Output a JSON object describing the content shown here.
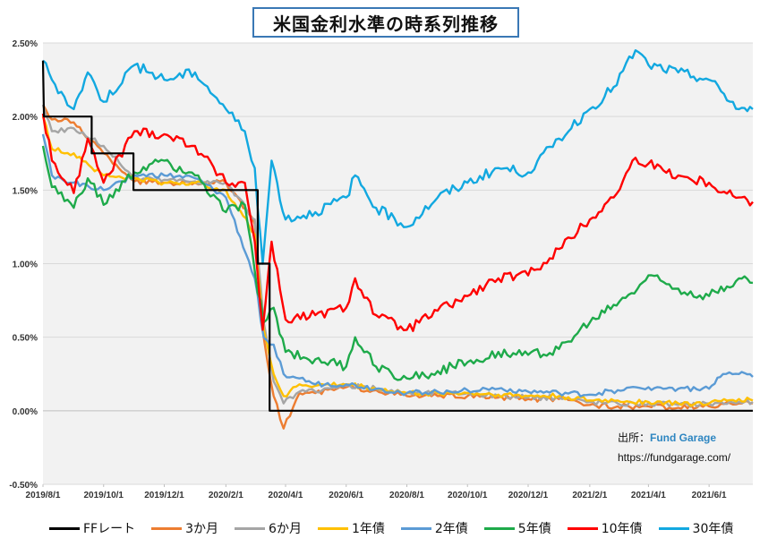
{
  "chart_data": {
    "type": "line",
    "title": "米国金利水準の時系列推移",
    "xlabel": "",
    "ylabel": "",
    "ylim": [
      -0.5,
      2.5
    ],
    "xlim": [
      "2019/8/1",
      "2021/7/15"
    ],
    "grid": true,
    "legend_position": "bottom",
    "y_ticks": [
      "2.50%",
      "2.00%",
      "1.50%",
      "1.00%",
      "0.50%",
      "0.00%",
      "-0.50%"
    ],
    "y_tick_values": [
      2.5,
      2.0,
      1.5,
      1.0,
      0.5,
      0.0,
      -0.5
    ],
    "x_ticks": [
      "2019/8/1",
      "2019/10/1",
      "2019/12/1",
      "2020/2/1",
      "2020/4/1",
      "2020/6/1",
      "2020/8/1",
      "2020/10/1",
      "2020/12/1",
      "2021/2/1",
      "2021/4/1",
      "2021/6/1"
    ],
    "series": [
      {
        "name": "FFレート",
        "color": "#000000",
        "step": true,
        "x": [
          "2019/8/1",
          "2019/8/2",
          "2019/9/19",
          "2019/9/19",
          "2019/10/31",
          "2019/10/31",
          "2020/3/4",
          "2020/3/4",
          "2020/3/16",
          "2020/3/16",
          "2021/7/15"
        ],
        "values": [
          2.38,
          2.0,
          2.0,
          1.75,
          1.75,
          1.5,
          1.5,
          1.0,
          1.0,
          0.0,
          0.0
        ]
      },
      {
        "name": "3か月",
        "color": "#ed7d31",
        "x": [
          "2019/8/1",
          "2019/8/10",
          "2019/9/1",
          "2019/10/1",
          "2019/11/1",
          "2019/12/1",
          "2020/1/1",
          "2020/2/1",
          "2020/3/1",
          "2020/3/10",
          "2020/3/20",
          "2020/3/30",
          "2020/4/15",
          "2020/5/1",
          "2020/6/1",
          "2020/7/1",
          "2020/8/1",
          "2020/9/1",
          "2020/10/1",
          "2020/11/1",
          "2020/12/1",
          "2021/1/1",
          "2021/2/1",
          "2021/3/1",
          "2021/4/1",
          "2021/5/1",
          "2021/6/1",
          "2021/7/1",
          "2021/7/15"
        ],
        "values": [
          2.08,
          1.98,
          1.96,
          1.75,
          1.56,
          1.55,
          1.55,
          1.55,
          1.27,
          0.5,
          0.1,
          -0.12,
          0.12,
          0.12,
          0.16,
          0.14,
          0.1,
          0.1,
          0.1,
          0.09,
          0.08,
          0.08,
          0.04,
          0.03,
          0.03,
          0.02,
          0.03,
          0.05,
          0.05
        ]
      },
      {
        "name": "6か月",
        "color": "#a5a5a5",
        "x": [
          "2019/8/1",
          "2019/8/10",
          "2019/9/1",
          "2019/10/1",
          "2019/11/1",
          "2019/12/1",
          "2020/1/1",
          "2020/2/1",
          "2020/3/1",
          "2020/3/10",
          "2020/3/20",
          "2020/3/30",
          "2020/4/15",
          "2020/5/1",
          "2020/6/1",
          "2020/7/1",
          "2020/8/1",
          "2020/9/1",
          "2020/10/1",
          "2020/11/1",
          "2020/12/1",
          "2021/1/1",
          "2021/2/1",
          "2021/3/1",
          "2021/4/1",
          "2021/5/1",
          "2021/6/1",
          "2021/7/1",
          "2021/7/15"
        ],
        "values": [
          2.08,
          1.9,
          1.92,
          1.8,
          1.58,
          1.57,
          1.56,
          1.55,
          1.3,
          0.6,
          0.2,
          0.05,
          0.13,
          0.13,
          0.17,
          0.15,
          0.12,
          0.12,
          0.12,
          0.1,
          0.09,
          0.09,
          0.06,
          0.05,
          0.05,
          0.04,
          0.05,
          0.06,
          0.06
        ]
      },
      {
        "name": "1年債",
        "color": "#ffc000",
        "x": [
          "2019/8/1",
          "2019/8/10",
          "2019/9/1",
          "2019/10/1",
          "2019/11/1",
          "2019/12/1",
          "2020/1/1",
          "2020/2/1",
          "2020/3/1",
          "2020/3/10",
          "2020/3/20",
          "2020/3/30",
          "2020/4/15",
          "2020/5/1",
          "2020/6/1",
          "2020/7/1",
          "2020/8/1",
          "2020/9/1",
          "2020/10/1",
          "2020/11/1",
          "2020/12/1",
          "2021/1/1",
          "2021/2/1",
          "2021/3/1",
          "2021/4/1",
          "2021/5/1",
          "2021/6/1",
          "2021/7/1",
          "2021/7/15"
        ],
        "values": [
          2.0,
          1.78,
          1.75,
          1.6,
          1.58,
          1.55,
          1.55,
          1.5,
          1.2,
          0.55,
          0.25,
          0.1,
          0.18,
          0.17,
          0.18,
          0.15,
          0.12,
          0.12,
          0.12,
          0.11,
          0.1,
          0.1,
          0.07,
          0.07,
          0.06,
          0.05,
          0.05,
          0.08,
          0.07
        ]
      },
      {
        "name": "2年債",
        "color": "#5b9bd5",
        "x": [
          "2019/8/1",
          "2019/8/10",
          "2019/9/1",
          "2019/10/1",
          "2019/11/1",
          "2019/12/1",
          "2020/1/1",
          "2020/2/1",
          "2020/3/1",
          "2020/3/10",
          "2020/3/20",
          "2020/3/30",
          "2020/4/15",
          "2020/5/1",
          "2020/6/1",
          "2020/7/1",
          "2020/8/1",
          "2020/9/1",
          "2020/10/1",
          "2020/11/1",
          "2020/12/1",
          "2021/1/1",
          "2021/2/1",
          "2021/3/1",
          "2021/4/1",
          "2021/5/1",
          "2021/6/1",
          "2021/6/15",
          "2021/7/1",
          "2021/7/15"
        ],
        "values": [
          1.88,
          1.6,
          1.55,
          1.5,
          1.6,
          1.6,
          1.58,
          1.45,
          0.9,
          0.5,
          0.45,
          0.25,
          0.22,
          0.18,
          0.18,
          0.15,
          0.12,
          0.13,
          0.14,
          0.15,
          0.13,
          0.12,
          0.11,
          0.14,
          0.16,
          0.15,
          0.15,
          0.25,
          0.25,
          0.23
        ]
      },
      {
        "name": "5年債",
        "color": "#1eaa4a",
        "x": [
          "2019/8/1",
          "2019/8/10",
          "2019/9/1",
          "2019/9/15",
          "2019/10/1",
          "2019/11/1",
          "2019/12/1",
          "2020/1/1",
          "2020/2/1",
          "2020/2/20",
          "2020/3/1",
          "2020/3/10",
          "2020/3/20",
          "2020/4/1",
          "2020/5/1",
          "2020/6/1",
          "2020/6/10",
          "2020/7/1",
          "2020/8/1",
          "2020/9/1",
          "2020/10/1",
          "2020/11/1",
          "2020/12/1",
          "2021/1/1",
          "2021/2/1",
          "2021/2/25",
          "2021/3/15",
          "2021/4/1",
          "2021/5/1",
          "2021/6/1",
          "2021/7/1",
          "2021/7/15"
        ],
        "values": [
          1.8,
          1.52,
          1.38,
          1.58,
          1.4,
          1.62,
          1.7,
          1.6,
          1.35,
          1.4,
          0.95,
          0.6,
          0.7,
          0.4,
          0.35,
          0.3,
          0.5,
          0.3,
          0.22,
          0.27,
          0.33,
          0.4,
          0.38,
          0.42,
          0.6,
          0.72,
          0.8,
          0.92,
          0.83,
          0.78,
          0.9,
          0.87
        ]
      },
      {
        "name": "10年債",
        "color": "#ff0000",
        "x": [
          "2019/8/1",
          "2019/8/10",
          "2019/9/1",
          "2019/9/15",
          "2019/10/1",
          "2019/11/1",
          "2019/12/1",
          "2020/1/1",
          "2020/2/1",
          "2020/2/20",
          "2020/3/1",
          "2020/3/9",
          "2020/3/18",
          "2020/4/1",
          "2020/5/1",
          "2020/6/1",
          "2020/6/10",
          "2020/7/1",
          "2020/8/1",
          "2020/9/1",
          "2020/10/1",
          "2020/11/1",
          "2020/12/1",
          "2021/1/1",
          "2021/2/1",
          "2021/2/25",
          "2021/3/19",
          "2021/4/1",
          "2021/5/1",
          "2021/6/1",
          "2021/7/1",
          "2021/7/15"
        ],
        "values": [
          2.02,
          1.7,
          1.48,
          1.85,
          1.55,
          1.9,
          1.88,
          1.8,
          1.55,
          1.55,
          1.15,
          0.55,
          1.15,
          0.62,
          0.65,
          0.7,
          0.9,
          0.65,
          0.55,
          0.68,
          0.78,
          0.9,
          0.92,
          1.1,
          1.3,
          1.45,
          1.72,
          1.68,
          1.6,
          1.55,
          1.45,
          1.42
        ]
      },
      {
        "name": "30年債",
        "color": "#12a8e0",
        "x": [
          "2019/8/1",
          "2019/8/10",
          "2019/9/1",
          "2019/9/15",
          "2019/10/1",
          "2019/11/1",
          "2019/12/1",
          "2020/1/1",
          "2020/2/1",
          "2020/2/20",
          "2020/3/1",
          "2020/3/9",
          "2020/3/18",
          "2020/4/1",
          "2020/5/1",
          "2020/6/1",
          "2020/6/10",
          "2020/7/1",
          "2020/8/1",
          "2020/9/1",
          "2020/10/1",
          "2020/11/1",
          "2020/12/1",
          "2021/1/1",
          "2021/2/1",
          "2021/2/25",
          "2021/3/19",
          "2021/4/1",
          "2021/5/1",
          "2021/6/1",
          "2021/7/1",
          "2021/7/15"
        ],
        "values": [
          2.38,
          2.25,
          2.05,
          2.3,
          2.1,
          2.35,
          2.25,
          2.3,
          2.05,
          1.9,
          1.65,
          1.0,
          1.7,
          1.3,
          1.35,
          1.45,
          1.6,
          1.38,
          1.25,
          1.45,
          1.55,
          1.65,
          1.62,
          1.85,
          2.05,
          2.2,
          2.45,
          2.35,
          2.3,
          2.25,
          2.05,
          2.05
        ]
      }
    ]
  },
  "source": {
    "label": "出所：",
    "name": "Fund Garage",
    "url": "https://fundgarage.com/"
  }
}
